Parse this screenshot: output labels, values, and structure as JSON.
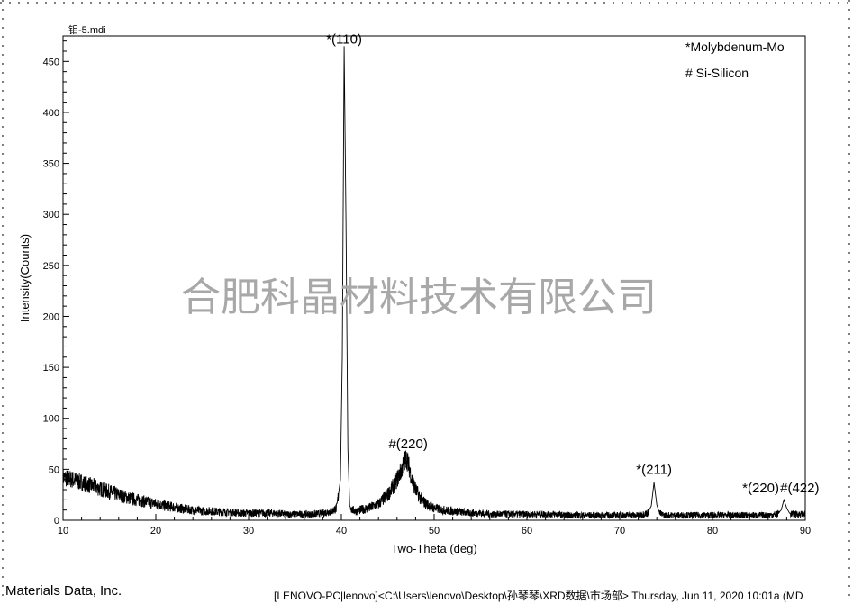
{
  "file_label": "钼-5.mdi",
  "watermark": "合肥科晶材料技术有限公司",
  "legend": [
    "*Molybdenum-Mo",
    "# Si-Silicon"
  ],
  "footer": {
    "left": "Materials Data, Inc.",
    "right": "[LENOVO-PC|lenovo]<C:\\Users\\lenovo\\Desktop\\孙琴琴\\XRD数据\\市场部> Thursday, Jun 11, 2020 10:01a (MD"
  },
  "colors": {
    "trace": "#000000",
    "watermark": "#a8a8a8",
    "background": "#ffffff"
  },
  "chart_data": {
    "type": "line",
    "title": "",
    "xlabel": "Two-Theta (deg)",
    "ylabel": "Intensity(Counts)",
    "xlim": [
      10,
      90
    ],
    "ylim": [
      0,
      475
    ],
    "xticks": [
      10,
      20,
      30,
      40,
      50,
      60,
      70,
      80,
      90
    ],
    "yticks": [
      0,
      50,
      100,
      150,
      200,
      250,
      300,
      350,
      400,
      450
    ],
    "grid": false,
    "legend_position": "top-right",
    "series": [
      {
        "x": [
          10,
          11,
          12,
          13,
          14,
          15,
          16,
          17,
          18,
          19,
          20,
          21,
          22,
          23,
          24,
          25,
          26,
          27,
          28,
          29,
          30,
          31,
          32,
          33,
          34,
          35,
          36,
          37,
          38,
          39,
          39.5,
          39.9,
          40.1,
          40.3,
          40.5,
          40.7,
          40.9,
          41.2,
          41.6,
          42,
          43,
          44,
          45,
          45.5,
          46,
          46.5,
          47,
          47.3,
          47.6,
          48,
          48.5,
          49,
          50,
          51,
          52,
          53,
          54,
          55,
          56,
          57,
          58,
          59,
          60,
          61,
          62,
          63,
          64,
          65,
          66,
          67,
          68,
          69,
          70,
          71,
          72,
          73,
          73.4,
          73.7,
          74,
          74.3,
          74.7,
          75,
          76,
          77,
          78,
          79,
          80,
          81,
          82,
          83,
          84,
          85,
          86,
          87,
          87.4,
          87.7,
          88,
          88.3,
          88.7,
          89,
          90
        ],
        "y": [
          42,
          40,
          37,
          34,
          31,
          28,
          25,
          22,
          20,
          18,
          16,
          14,
          13,
          11,
          10,
          9,
          9,
          8,
          8,
          7,
          7,
          7,
          7,
          7,
          6,
          6,
          6,
          6,
          7,
          9,
          12,
          40,
          160,
          465,
          290,
          70,
          14,
          10,
          9,
          10,
          12,
          16,
          25,
          32,
          40,
          50,
          62,
          52,
          40,
          30,
          22,
          17,
          12,
          10,
          9,
          8,
          7,
          7,
          6,
          6,
          6,
          6,
          6,
          6,
          6,
          6,
          5,
          5,
          5,
          5,
          5,
          5,
          5,
          5,
          5,
          7,
          14,
          37,
          15,
          7,
          5,
          5,
          5,
          5,
          5,
          5,
          5,
          5,
          5,
          5,
          5,
          5,
          5,
          6,
          10,
          20,
          12,
          7,
          6,
          6,
          6
        ]
      }
    ],
    "annotations": [
      {
        "text": "*(110)",
        "x": 40.3,
        "y": 472
      },
      {
        "text": "#(220)",
        "x": 47.2,
        "y": 75
      },
      {
        "text": "*(211)",
        "x": 73.7,
        "y": 50
      },
      {
        "text": "*(220)",
        "x": 85.2,
        "y": 32
      },
      {
        "text": "#(422)",
        "x": 89.4,
        "y": 32
      }
    ]
  }
}
